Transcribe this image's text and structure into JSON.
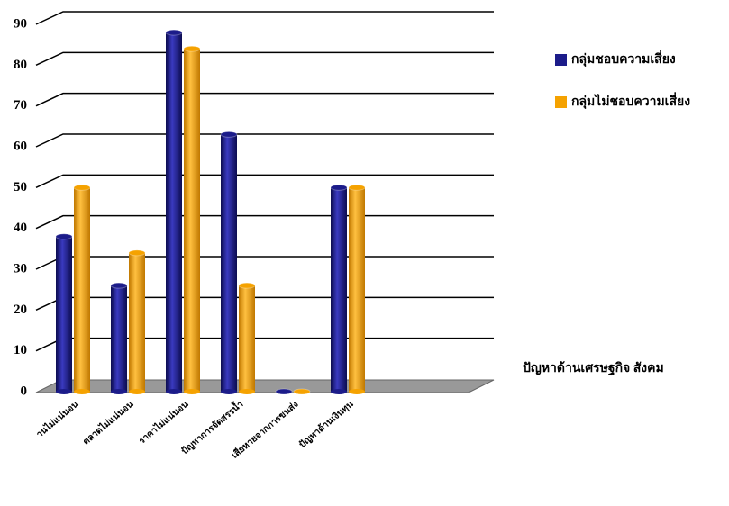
{
  "chart_data": {
    "type": "bar",
    "categories": [
      "านไม่แน่นอน",
      "ตลาดไม่แน่นอน",
      "ราคาไม่แน่นอน",
      "ปัญหาการจัดสรรน้ำ",
      "เสียหายจากการขนส่ง",
      "ปัญหาด้านเงินทุน"
    ],
    "series": [
      {
        "name": "กลุ่มชอบความเสี่ยง",
        "color": "#1c1c8a",
        "values": [
          38,
          26,
          88,
          63,
          0,
          50
        ]
      },
      {
        "name": "กลุ่มไม่ชอบความเสี่ยง",
        "color": "#f5a200",
        "values": [
          50,
          34,
          84,
          26,
          0,
          50
        ]
      }
    ],
    "x_label": "ปัญหาด้านเศรษฐกิจ สังคม",
    "ylim": [
      0,
      90
    ],
    "yticks": [
      0,
      10,
      20,
      30,
      40,
      50,
      60,
      70,
      80,
      90
    ],
    "grid": true
  }
}
